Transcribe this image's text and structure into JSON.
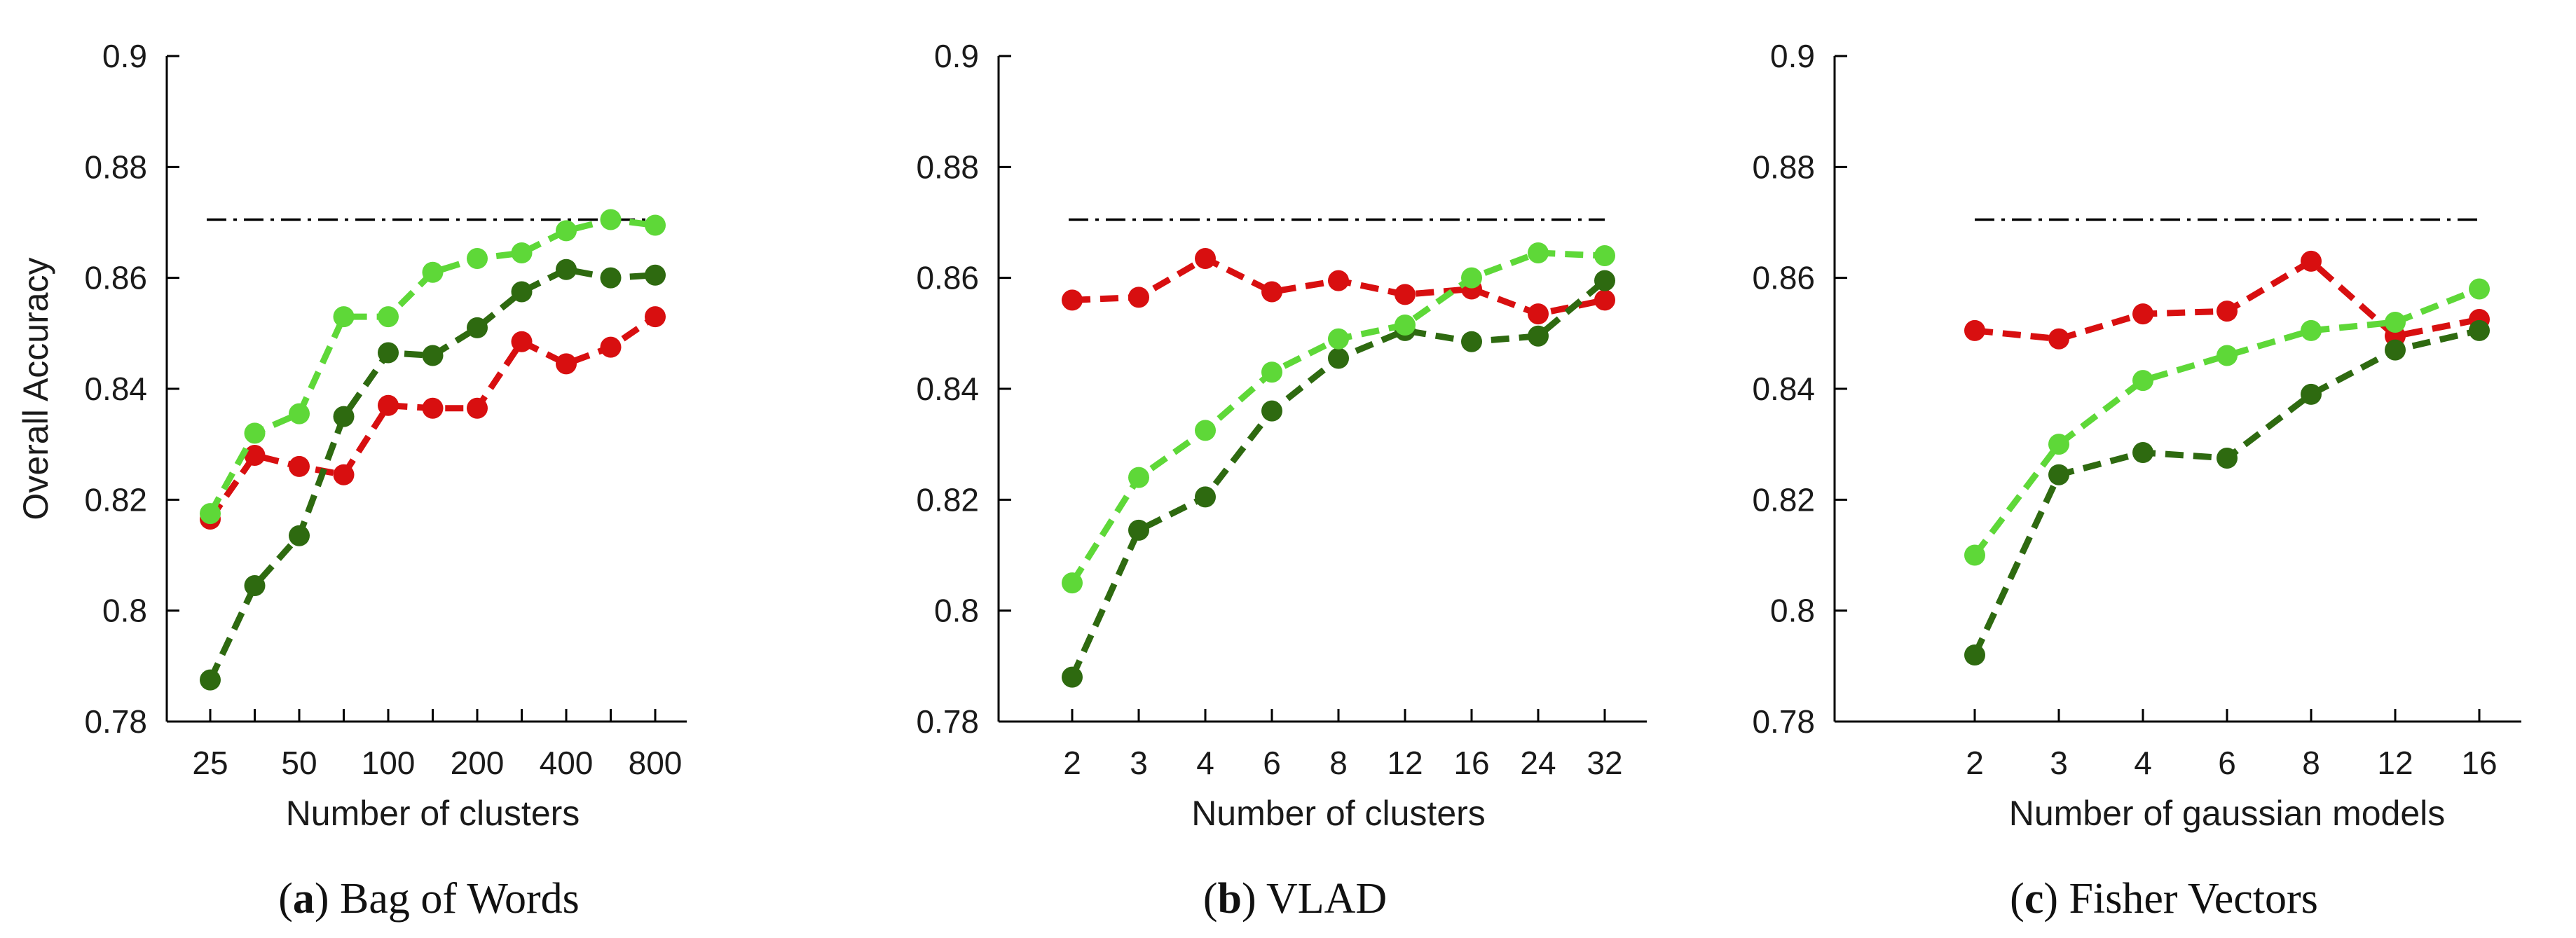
{
  "figure": {
    "ylabel": "Overall Accuracy",
    "baseline_value": 0.8705,
    "colors": {
      "red": "#d80f10",
      "light_green": "#5ed838",
      "dark_green": "#2e6a10",
      "baseline": "#000000"
    }
  },
  "chart_data": [
    {
      "type": "line",
      "title": "Bag of Words",
      "caption_letter": "a",
      "xlabel": "Number of clusters",
      "ylabel": "Overall Accuracy",
      "ylim": [
        0.78,
        0.9
      ],
      "yticks": [
        "0.78",
        "0.8",
        "0.82",
        "0.84",
        "0.86",
        "0.88",
        "0.9"
      ],
      "x": [
        "25",
        "35",
        "50",
        "70",
        "100",
        "140",
        "200",
        "280",
        "400",
        "560",
        "800"
      ],
      "xtick_labels": [
        "25",
        "",
        "50",
        "",
        "100",
        "",
        "200",
        "",
        "400",
        "",
        "800"
      ],
      "baseline": 0.8705,
      "series": [
        {
          "name": "red",
          "color": "#d80f10",
          "values": [
            0.8165,
            0.828,
            0.826,
            0.8245,
            0.837,
            0.8365,
            0.8365,
            0.8485,
            0.8445,
            0.8475,
            0.853
          ]
        },
        {
          "name": "dark green",
          "color": "#2e6a10",
          "values": [
            0.7875,
            0.8045,
            0.8135,
            0.835,
            0.8465,
            0.846,
            0.851,
            0.8575,
            0.8615,
            0.86,
            0.8605
          ]
        },
        {
          "name": "light green",
          "color": "#5ed838",
          "values": [
            0.8175,
            0.832,
            0.8355,
            0.853,
            0.853,
            0.861,
            0.8635,
            0.8645,
            0.8685,
            0.8705,
            0.8695
          ]
        }
      ]
    },
    {
      "type": "line",
      "title": "VLAD",
      "caption_letter": "b",
      "xlabel": "Number of clusters",
      "ylabel": "",
      "ylim": [
        0.78,
        0.9
      ],
      "yticks": [
        "0.78",
        "0.8",
        "0.82",
        "0.84",
        "0.86",
        "0.88",
        "0.9"
      ],
      "x": [
        "2",
        "3",
        "4",
        "6",
        "8",
        "12",
        "16",
        "24",
        "32"
      ],
      "xtick_labels": [
        "2",
        "3",
        "4",
        "6",
        "8",
        "12",
        "16",
        "24",
        "32"
      ],
      "baseline": 0.8705,
      "series": [
        {
          "name": "red",
          "color": "#d80f10",
          "values": [
            0.856,
            0.8565,
            0.8635,
            0.8575,
            0.8595,
            0.857,
            0.858,
            0.8535,
            0.856
          ]
        },
        {
          "name": "dark green",
          "color": "#2e6a10",
          "values": [
            0.788,
            0.8145,
            0.8205,
            0.836,
            0.8455,
            0.8505,
            0.8485,
            0.8495,
            0.8595
          ]
        },
        {
          "name": "light green",
          "color": "#5ed838",
          "values": [
            0.805,
            0.824,
            0.8325,
            0.843,
            0.849,
            0.8515,
            0.86,
            0.8645,
            0.864
          ]
        }
      ]
    },
    {
      "type": "line",
      "title": "Fisher Vectors",
      "caption_letter": "c",
      "xlabel": "Number of gaussian models",
      "ylabel": "",
      "ylim": [
        0.78,
        0.9
      ],
      "yticks": [
        "0.78",
        "0.8",
        "0.82",
        "0.84",
        "0.86",
        "0.88",
        "0.9"
      ],
      "x": [
        "2",
        "3",
        "4",
        "6",
        "8",
        "12",
        "16"
      ],
      "xtick_labels": [
        "2",
        "3",
        "4",
        "6",
        "8",
        "12",
        "16"
      ],
      "baseline": 0.8705,
      "series": [
        {
          "name": "red",
          "color": "#d80f10",
          "values": [
            0.8505,
            0.849,
            0.8535,
            0.854,
            0.863,
            0.8495,
            0.8525
          ]
        },
        {
          "name": "dark green",
          "color": "#2e6a10",
          "values": [
            0.792,
            0.8245,
            0.8285,
            0.8275,
            0.839,
            0.847,
            0.8505
          ]
        },
        {
          "name": "light green",
          "color": "#5ed838",
          "values": [
            0.81,
            0.83,
            0.8415,
            0.846,
            0.8505,
            0.852,
            0.858
          ]
        }
      ]
    }
  ]
}
